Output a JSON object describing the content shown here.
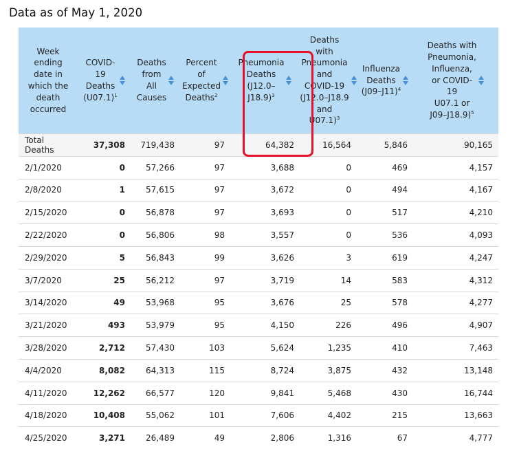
{
  "title": "Data as of May 1, 2020",
  "columns": [
    {
      "lines": [
        "Week",
        "ending",
        "date in",
        "which the",
        "death",
        "occurred"
      ],
      "sup": "",
      "sortable": false
    },
    {
      "lines": [
        "COVID-",
        "19",
        "Deaths",
        "(U07.1)"
      ],
      "sup": "1",
      "sortable": true
    },
    {
      "lines": [
        "Deaths",
        "from",
        "All",
        "Causes"
      ],
      "sup": "",
      "sortable": true
    },
    {
      "lines": [
        "Percent",
        "of",
        "Expected",
        "Deaths"
      ],
      "sup": "2",
      "sortable": true
    },
    {
      "lines": [
        "Pneumonia",
        "Deaths",
        "(J12.0–",
        "J18.9)"
      ],
      "sup": "3",
      "sortable": true
    },
    {
      "lines": [
        "Deaths",
        "with",
        "Pneumonia",
        "and",
        "COVID-19",
        "(J12.0–J18.9",
        "and",
        "U07.1)"
      ],
      "sup": "3",
      "sortable": true
    },
    {
      "lines": [
        "Influenza",
        "Deaths",
        "(J09–J11)"
      ],
      "sup": "4",
      "sortable": true
    },
    {
      "lines": [
        "Deaths with",
        "Pneumonia,",
        "Influenza,",
        "or COVID-",
        "19",
        "U07.1 or",
        "J09–J18.9)"
      ],
      "sup": "5",
      "sortable": true
    }
  ],
  "rows": [
    [
      "Total Deaths",
      "37,308",
      "719,438",
      "97",
      "64,382",
      "16,564",
      "5,846",
      "90,165"
    ],
    [
      "2/1/2020",
      "0",
      "57,266",
      "97",
      "3,688",
      "0",
      "469",
      "4,157"
    ],
    [
      "2/8/2020",
      "1",
      "57,615",
      "97",
      "3,672",
      "0",
      "494",
      "4,167"
    ],
    [
      "2/15/2020",
      "0",
      "56,878",
      "97",
      "3,693",
      "0",
      "517",
      "4,210"
    ],
    [
      "2/22/2020",
      "0",
      "56,806",
      "98",
      "3,557",
      "0",
      "536",
      "4,093"
    ],
    [
      "2/29/2020",
      "5",
      "56,843",
      "99",
      "3,626",
      "3",
      "619",
      "4,247"
    ],
    [
      "3/7/2020",
      "25",
      "56,212",
      "97",
      "3,719",
      "14",
      "583",
      "4,312"
    ],
    [
      "3/14/2020",
      "49",
      "53,968",
      "95",
      "3,676",
      "25",
      "578",
      "4,277"
    ],
    [
      "3/21/2020",
      "493",
      "53,979",
      "95",
      "4,150",
      "226",
      "496",
      "4,907"
    ],
    [
      "3/28/2020",
      "2,712",
      "57,430",
      "103",
      "5,624",
      "1,235",
      "410",
      "7,463"
    ],
    [
      "4/4/2020",
      "8,082",
      "64,313",
      "115",
      "8,724",
      "3,875",
      "432",
      "13,148"
    ],
    [
      "4/11/2020",
      "12,262",
      "66,577",
      "120",
      "9,841",
      "5,468",
      "430",
      "16,744"
    ],
    [
      "4/18/2020",
      "10,408",
      "55,062",
      "101",
      "7,606",
      "4,402",
      "215",
      "13,663"
    ],
    [
      "4/25/2020",
      "3,271",
      "26,489",
      "49",
      "2,806",
      "1,316",
      "67",
      "4,777"
    ]
  ],
  "colors": {
    "header_bg": "#b8dcf6",
    "sort_arrow": "#4a90d9",
    "highlight": "#e5102a"
  },
  "icons": {
    "sort": "sort-arrows-icon"
  }
}
